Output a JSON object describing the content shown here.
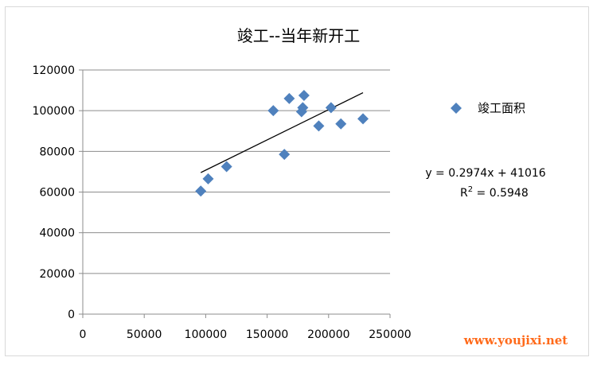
{
  "chart_data": {
    "type": "scatter",
    "title": "竣工--当年新开工",
    "xlabel": "",
    "ylabel": "",
    "xlim": [
      0,
      250000
    ],
    "ylim": [
      0,
      120000
    ],
    "x_ticks": [
      0,
      50000,
      100000,
      150000,
      200000,
      250000
    ],
    "y_ticks": [
      0,
      20000,
      40000,
      60000,
      80000,
      100000,
      120000
    ],
    "grid": "horizontal",
    "legend_position": "right",
    "series": [
      {
        "name": "竣工面积",
        "color": "#4f81bd",
        "marker": "diamond",
        "points": [
          {
            "x": 96000,
            "y": 60500
          },
          {
            "x": 102000,
            "y": 66500
          },
          {
            "x": 117000,
            "y": 72500
          },
          {
            "x": 155000,
            "y": 100000
          },
          {
            "x": 164000,
            "y": 78500
          },
          {
            "x": 168000,
            "y": 106000
          },
          {
            "x": 178000,
            "y": 99500
          },
          {
            "x": 179000,
            "y": 101500
          },
          {
            "x": 180000,
            "y": 107500
          },
          {
            "x": 192000,
            "y": 92500
          },
          {
            "x": 202000,
            "y": 101500
          },
          {
            "x": 210000,
            "y": 93500
          },
          {
            "x": 228000,
            "y": 96000
          }
        ]
      }
    ],
    "trendline": {
      "type": "linear",
      "slope": 0.2974,
      "intercept": 41016,
      "x_range": [
        96000,
        228000
      ],
      "color": "#000000",
      "equation": "y = 0.2974x + 41016",
      "r2_prefix": "R",
      "r2_sup": "2",
      "r2_value": " = 0.5948"
    }
  },
  "watermark": "www.youjixi.net"
}
